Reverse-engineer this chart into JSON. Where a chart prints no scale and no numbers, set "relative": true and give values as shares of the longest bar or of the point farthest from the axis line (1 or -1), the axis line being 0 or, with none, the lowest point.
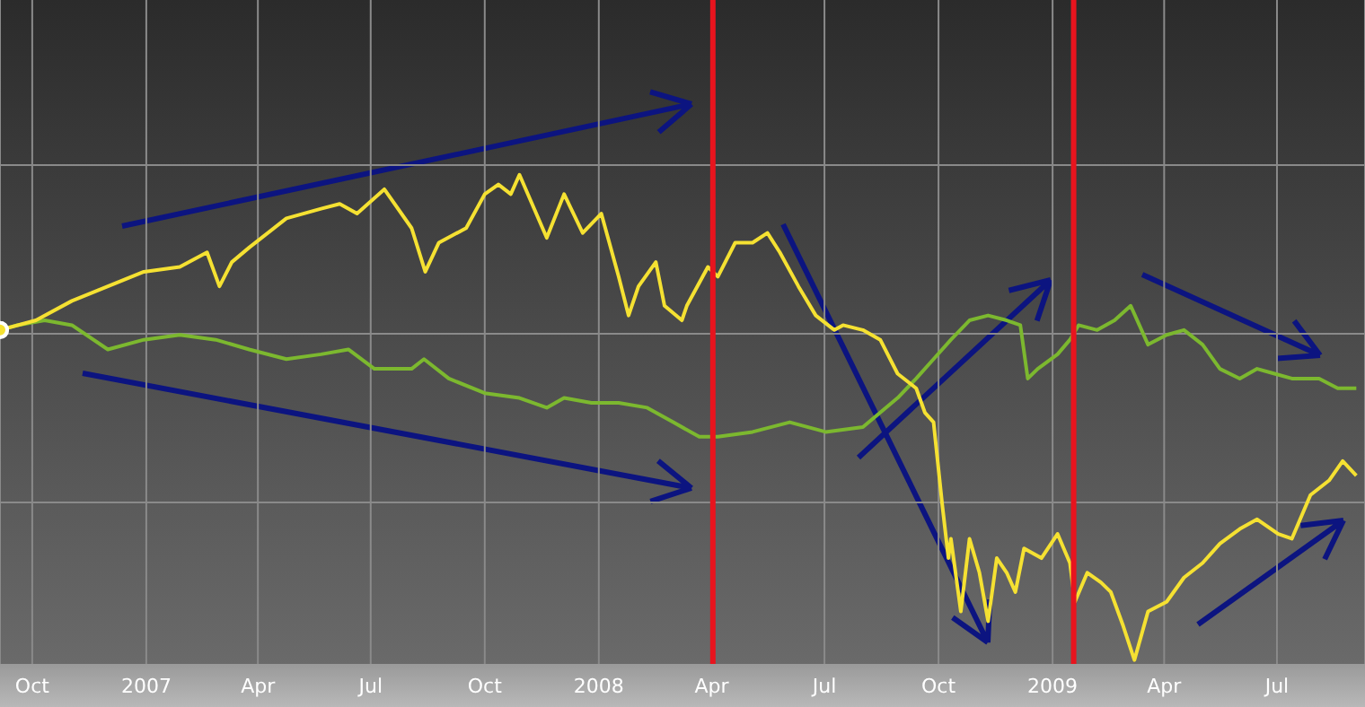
{
  "chart_data": {
    "type": "line",
    "relative": true,
    "grid": true,
    "xlim": [
      "2006-09-05",
      "2009-09-10"
    ],
    "xticks": [
      {
        "value": "2006-10-01",
        "label": "Oct"
      },
      {
        "value": "2007-01-01",
        "label": "2007"
      },
      {
        "value": "2007-04-01",
        "label": "Apr"
      },
      {
        "value": "2007-07-01",
        "label": "Jul"
      },
      {
        "value": "2007-10-01",
        "label": "Oct"
      },
      {
        "value": "2008-01-01",
        "label": "2008"
      },
      {
        "value": "2008-04-01",
        "label": "Apr"
      },
      {
        "value": "2008-07-01",
        "label": "Jul"
      },
      {
        "value": "2008-10-01",
        "label": "Oct"
      },
      {
        "value": "2009-01-01",
        "label": "2009"
      },
      {
        "value": "2009-04-01",
        "label": "Apr"
      },
      {
        "value": "2009-07-01",
        "label": "Jul"
      }
    ],
    "ref_lines": [
      {
        "axis": "x",
        "value": "2008-04-02",
        "color": "#e8141e"
      },
      {
        "axis": "x",
        "value": "2009-01-18",
        "color": "#e8141e"
      }
    ],
    "series": [
      {
        "color": "#7cb82f",
        "x": [
          "2006-09-05",
          "2006-09-19",
          "2006-10-11",
          "2006-11-02",
          "2006-12-01",
          "2006-12-30",
          "2007-01-28",
          "2007-02-26",
          "2007-03-25",
          "2007-04-24",
          "2007-05-22",
          "2007-06-13",
          "2007-07-04",
          "2007-08-03",
          "2007-08-13",
          "2007-09-02",
          "2007-10-01",
          "2007-10-29",
          "2007-11-20",
          "2007-12-04",
          "2007-12-26",
          "2008-01-17",
          "2008-02-09",
          "2008-03-01",
          "2008-03-22",
          "2008-04-06",
          "2008-05-04",
          "2008-06-03",
          "2008-07-02",
          "2008-08-01",
          "2008-08-15",
          "2008-08-29",
          "2008-09-13",
          "2008-09-27",
          "2008-10-11",
          "2008-10-26",
          "2008-11-10",
          "2008-11-25",
          "2008-12-06",
          "2008-12-12",
          "2008-12-20",
          "2009-01-05",
          "2009-01-15",
          "2009-01-22",
          "2009-02-06",
          "2009-02-20",
          "2009-03-05",
          "2009-03-12",
          "2009-03-19",
          "2009-04-03",
          "2009-04-17",
          "2009-05-02",
          "2009-05-16",
          "2009-06-01",
          "2009-06-15",
          "2009-06-29",
          "2009-07-13",
          "2009-08-04",
          "2009-08-19",
          "2009-09-03"
        ],
        "values": [
          0.68,
          0.69,
          0.7,
          0.69,
          0.64,
          0.66,
          0.67,
          0.66,
          0.64,
          0.62,
          0.63,
          0.64,
          0.6,
          0.6,
          0.62,
          0.58,
          0.55,
          0.54,
          0.52,
          0.54,
          0.53,
          0.53,
          0.52,
          0.49,
          0.46,
          0.46,
          0.47,
          0.49,
          0.47,
          0.48,
          0.51,
          0.54,
          0.58,
          0.62,
          0.66,
          0.7,
          0.71,
          0.7,
          0.69,
          0.58,
          0.6,
          0.63,
          0.66,
          0.69,
          0.68,
          0.7,
          0.73,
          0.69,
          0.65,
          0.67,
          0.68,
          0.65,
          0.6,
          0.58,
          0.6,
          0.59,
          0.58,
          0.58,
          0.56,
          0.56
        ]
      },
      {
        "color": "#f5e132",
        "x": [
          "2006-09-05",
          "2006-10-04",
          "2006-11-02",
          "2006-12-01",
          "2006-12-30",
          "2007-01-28",
          "2007-02-19",
          "2007-03-01",
          "2007-03-11",
          "2007-03-25",
          "2007-04-24",
          "2007-05-22",
          "2007-06-06",
          "2007-06-20",
          "2007-07-12",
          "2007-08-03",
          "2007-08-14",
          "2007-08-25",
          "2007-09-16",
          "2007-10-01",
          "2007-10-12",
          "2007-10-22",
          "2007-10-29",
          "2007-11-20",
          "2007-12-04",
          "2007-12-19",
          "2008-01-03",
          "2008-01-17",
          "2008-01-25",
          "2008-02-02",
          "2008-02-16",
          "2008-02-23",
          "2008-03-08",
          "2008-03-12",
          "2008-03-29",
          "2008-04-06",
          "2008-04-20",
          "2008-05-04",
          "2008-05-16",
          "2008-05-26",
          "2008-06-10",
          "2008-06-24",
          "2008-07-09",
          "2008-07-16",
          "2008-08-01",
          "2008-08-15",
          "2008-08-29",
          "2008-09-13",
          "2008-09-20",
          "2008-09-27",
          "2008-10-04",
          "2008-10-09",
          "2008-10-11",
          "2008-10-19",
          "2008-10-26",
          "2008-11-03",
          "2008-11-10",
          "2008-11-17",
          "2008-11-25",
          "2008-12-02",
          "2008-12-09",
          "2008-12-23",
          "2009-01-05",
          "2009-01-15",
          "2009-01-19",
          "2009-01-29",
          "2009-02-09",
          "2009-02-17",
          "2009-02-27",
          "2009-03-08",
          "2009-03-19",
          "2009-04-03",
          "2009-04-17",
          "2009-05-02",
          "2009-05-16",
          "2009-06-01",
          "2009-06-15",
          "2009-07-02",
          "2009-07-13",
          "2009-07-28",
          "2009-08-12",
          "2009-08-23",
          "2009-09-03"
        ],
        "values": [
          0.68,
          0.7,
          0.74,
          0.77,
          0.8,
          0.81,
          0.84,
          0.77,
          0.82,
          0.85,
          0.91,
          0.93,
          0.94,
          0.92,
          0.97,
          0.89,
          0.8,
          0.86,
          0.89,
          0.96,
          0.98,
          0.96,
          1,
          0.87,
          0.96,
          0.88,
          0.92,
          0.79,
          0.71,
          0.77,
          0.82,
          0.73,
          0.7,
          0.73,
          0.81,
          0.79,
          0.86,
          0.86,
          0.88,
          0.84,
          0.77,
          0.71,
          0.68,
          0.69,
          0.68,
          0.66,
          0.59,
          0.56,
          0.51,
          0.49,
          0.32,
          0.21,
          0.25,
          0.1,
          0.25,
          0.18,
          0.08,
          0.21,
          0.18,
          0.14,
          0.23,
          0.21,
          0.26,
          0.2,
          0.12,
          0.18,
          0.16,
          0.14,
          0.07,
          0,
          0.1,
          0.12,
          0.17,
          0.2,
          0.24,
          0.27,
          0.29,
          0.26,
          0.25,
          0.34,
          0.37,
          0.41,
          0.38
        ]
      }
    ]
  }
}
